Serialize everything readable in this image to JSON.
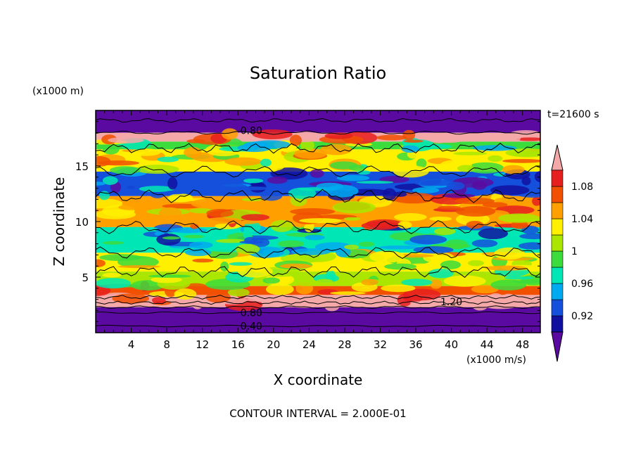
{
  "chart_data": {
    "type": "heatmap",
    "title": "Saturation Ratio",
    "xlabel": "X coordinate",
    "ylabel": "Z coordinate",
    "x_unit": "(x1000 m/s)",
    "y_unit": "(x1000 m)",
    "time_label": "t=21600 s",
    "footer": "CONTOUR INTERVAL = 2.000E-01",
    "xlim": [
      0,
      50
    ],
    "ylim": [
      0,
      20
    ],
    "x_ticks": [
      4,
      8,
      12,
      16,
      20,
      24,
      28,
      32,
      36,
      40,
      44,
      48
    ],
    "y_ticks": [
      5,
      10,
      15
    ],
    "colorbar": {
      "levels": [
        0.9,
        0.92,
        0.94,
        0.96,
        0.98,
        1.0,
        1.02,
        1.04,
        1.06,
        1.08,
        1.1
      ],
      "labels": [
        {
          "value": 0.92,
          "text": "0.92"
        },
        {
          "value": 0.96,
          "text": "0.96"
        },
        {
          "value": 1.0,
          "text": "1"
        },
        {
          "value": 1.04,
          "text": "1.04"
        },
        {
          "value": 1.08,
          "text": "1.08"
        }
      ],
      "colors": [
        "#5a0aa0",
        "#1010a0",
        "#1450dc",
        "#00aaf0",
        "#00e6b4",
        "#3cdc3c",
        "#aae600",
        "#fff000",
        "#ffa000",
        "#f05000",
        "#e61e1e",
        "#f4a8a8"
      ]
    },
    "contour_labels": [
      {
        "x": 17.5,
        "y": 18.2,
        "text": "0.80"
      },
      {
        "x": 40.0,
        "y": 2.8,
        "text": "1.20"
      },
      {
        "x": 17.5,
        "y": 1.8,
        "text": "0.80"
      },
      {
        "x": 17.5,
        "y": 0.6,
        "text": "0.40"
      }
    ],
    "bands": [
      {
        "z": [
          0.0,
          1.8
        ],
        "value": 0.5
      },
      {
        "z": [
          1.8,
          2.3
        ],
        "value": 0.85
      },
      {
        "z": [
          2.3,
          3.4
        ],
        "value": 1.12
      },
      {
        "z": [
          3.4,
          4.2
        ],
        "value": 1.06
      },
      {
        "z": [
          4.2,
          5.5
        ],
        "value": 1.01
      },
      {
        "z": [
          5.5,
          7.2
        ],
        "value": 1.02
      },
      {
        "z": [
          7.2,
          9.5
        ],
        "value": 0.96
      },
      {
        "z": [
          9.5,
          12.3
        ],
        "value": 1.05
      },
      {
        "z": [
          12.3,
          14.5
        ],
        "value": 0.93
      },
      {
        "z": [
          14.5,
          16.5
        ],
        "value": 1.02
      },
      {
        "z": [
          16.5,
          17.2
        ],
        "value": 0.99
      },
      {
        "z": [
          17.2,
          18.0
        ],
        "value": 1.1
      },
      {
        "z": [
          18.0,
          20.0
        ],
        "value": 0.5
      }
    ]
  }
}
